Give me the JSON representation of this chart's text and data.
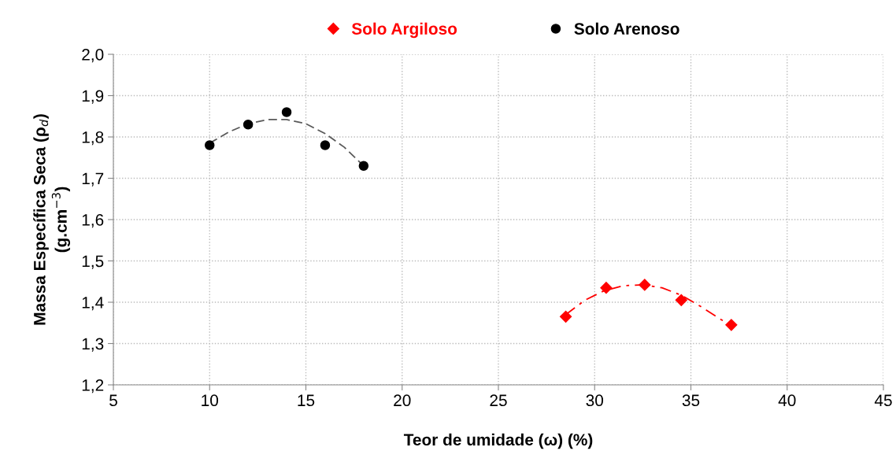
{
  "chart_data": {
    "type": "scatter",
    "xlabel": "Teor de umidade (ω) (%)",
    "ylabel": "Massa Específica Seca (ρ$_{d}$)\n(g.cm$^{−3}$)",
    "xlim": [
      5,
      45
    ],
    "xticks": [
      5,
      10,
      15,
      20,
      25,
      30,
      35,
      40,
      45
    ],
    "ylim": [
      1.2,
      2.0
    ],
    "yticks": [
      {
        "value": 1.2,
        "label": "1,2"
      },
      {
        "value": 1.3,
        "label": "1,3"
      },
      {
        "value": 1.4,
        "label": "1,4"
      },
      {
        "value": 1.5,
        "label": "1,5"
      },
      {
        "value": 1.6,
        "label": "1,6"
      },
      {
        "value": 1.7,
        "label": "1,7"
      },
      {
        "value": 1.8,
        "label": "1,8"
      },
      {
        "value": 1.9,
        "label": "1,9"
      },
      {
        "value": 2.0,
        "label": "2,0"
      }
    ],
    "grid": true,
    "legend": "top",
    "series": [
      {
        "name": "Solo Argiloso",
        "color": "#ff0000",
        "marker": "diamond",
        "x": [
          28.5,
          30.6,
          32.6,
          34.5,
          37.1
        ],
        "values": [
          1.365,
          1.435,
          1.442,
          1.405,
          1.345
        ]
      },
      {
        "name": "Solo Arenoso",
        "color": "#000000",
        "marker": "circle",
        "x": [
          10,
          12,
          14,
          16,
          18
        ],
        "values": [
          1.78,
          1.83,
          1.86,
          1.78,
          1.73
        ]
      },
      {
        "type": "line",
        "color": "#ff0000",
        "line_style": "dashdot",
        "marker": "none",
        "x": [
          28.5,
          29.5,
          30.5,
          31.5,
          32.5,
          33.5,
          34.5,
          35.5,
          36.5,
          37.1
        ],
        "values": [
          1.37,
          1.405,
          1.428,
          1.44,
          1.442,
          1.435,
          1.417,
          1.39,
          1.36,
          1.343
        ]
      },
      {
        "type": "line",
        "color": "#595959",
        "line_style": "dashed",
        "marker": "none",
        "x": [
          10,
          11,
          12,
          13,
          14,
          15,
          16,
          17,
          18
        ],
        "values": [
          1.785,
          1.812,
          1.832,
          1.842,
          1.842,
          1.832,
          1.808,
          1.775,
          1.73
        ]
      }
    ]
  }
}
